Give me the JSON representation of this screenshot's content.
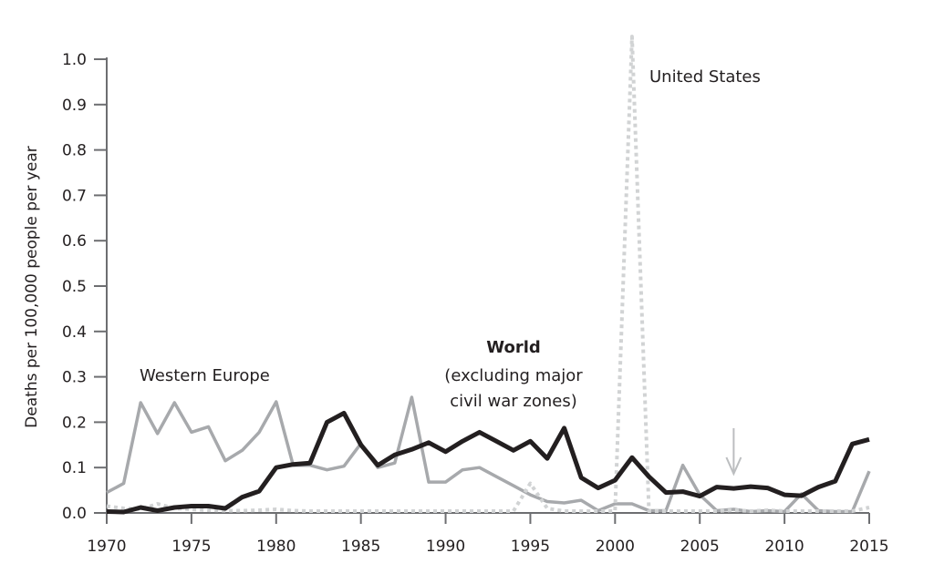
{
  "chart_data": {
    "type": "line",
    "title": "",
    "xlabel": "",
    "ylabel": "Deaths per 100,000 people per year",
    "xlim": [
      1970,
      2015
    ],
    "ylim": [
      0,
      1.0
    ],
    "grid": false,
    "x_ticks": [
      "1970",
      "1975",
      "1980",
      "1985",
      "1990",
      "1995",
      "2000",
      "2005",
      "2010",
      "2015"
    ],
    "y_ticks": [
      "0.0",
      "0.1",
      "0.2",
      "0.3",
      "0.4",
      "0.5",
      "0.6",
      "0.7",
      "0.8",
      "0.9",
      "1.0"
    ],
    "x": [
      1970,
      1971,
      1972,
      1973,
      1974,
      1975,
      1976,
      1977,
      1978,
      1979,
      1980,
      1981,
      1982,
      1983,
      1984,
      1985,
      1986,
      1987,
      1988,
      1989,
      1990,
      1991,
      1992,
      1993,
      1994,
      1995,
      1996,
      1997,
      1998,
      1999,
      2000,
      2001,
      2002,
      2003,
      2004,
      2005,
      2006,
      2007,
      2008,
      2009,
      2010,
      2011,
      2012,
      2013,
      2014,
      2015
    ],
    "series": [
      {
        "name": "Western Europe",
        "color": "#a7a9ac",
        "style": "solid",
        "values": [
          0.045,
          0.065,
          0.243,
          0.175,
          0.243,
          0.178,
          0.19,
          0.115,
          0.138,
          0.178,
          0.245,
          0.105,
          0.105,
          0.095,
          0.103,
          0.153,
          0.1,
          0.11,
          0.255,
          0.068,
          0.068,
          0.095,
          0.1,
          0.08,
          0.06,
          0.04,
          0.025,
          0.022,
          0.028,
          0.005,
          0.02,
          0.02,
          0.005,
          0.005,
          0.105,
          0.04,
          0.005,
          0.008,
          0.003,
          0.005,
          0.003,
          0.042,
          0.005,
          0.003,
          0.003,
          0.092
        ]
      },
      {
        "name": "United States",
        "color": "#d1d3d4",
        "style": "dotted",
        "values": [
          0.015,
          0.01,
          0.008,
          0.02,
          0.01,
          0.008,
          0.006,
          0.005,
          0.005,
          0.006,
          0.008,
          0.005,
          0.004,
          0.004,
          0.004,
          0.004,
          0.004,
          0.004,
          0.004,
          0.004,
          0.004,
          0.004,
          0.004,
          0.004,
          0.004,
          0.065,
          0.01,
          0.004,
          0.004,
          0.004,
          0.004,
          1.05,
          0.004,
          0.004,
          0.004,
          0.004,
          0.004,
          0.006,
          0.004,
          0.006,
          0.004,
          0.004,
          0.004,
          0.004,
          0.004,
          0.012
        ]
      },
      {
        "name": "World",
        "label_sub": "(excluding major civil war zones)",
        "color": "#231f20",
        "style": "solid-bold",
        "values": [
          0.003,
          0.002,
          0.012,
          0.005,
          0.012,
          0.015,
          0.015,
          0.01,
          0.035,
          0.048,
          0.1,
          0.107,
          0.11,
          0.2,
          0.22,
          0.15,
          0.105,
          0.128,
          0.14,
          0.155,
          0.135,
          0.158,
          0.178,
          0.158,
          0.138,
          0.158,
          0.12,
          0.187,
          0.078,
          0.055,
          0.072,
          0.122,
          0.08,
          0.045,
          0.047,
          0.037,
          0.057,
          0.054,
          0.058,
          0.055,
          0.04,
          0.038,
          0.057,
          0.07,
          0.152,
          0.162
        ]
      }
    ],
    "annotations": {
      "western_europe": "Western Europe",
      "united_states": "United States",
      "world_title": "World",
      "world_sub1": "(excluding major",
      "world_sub2": "civil war zones)",
      "arrow_year": 2007
    }
  }
}
